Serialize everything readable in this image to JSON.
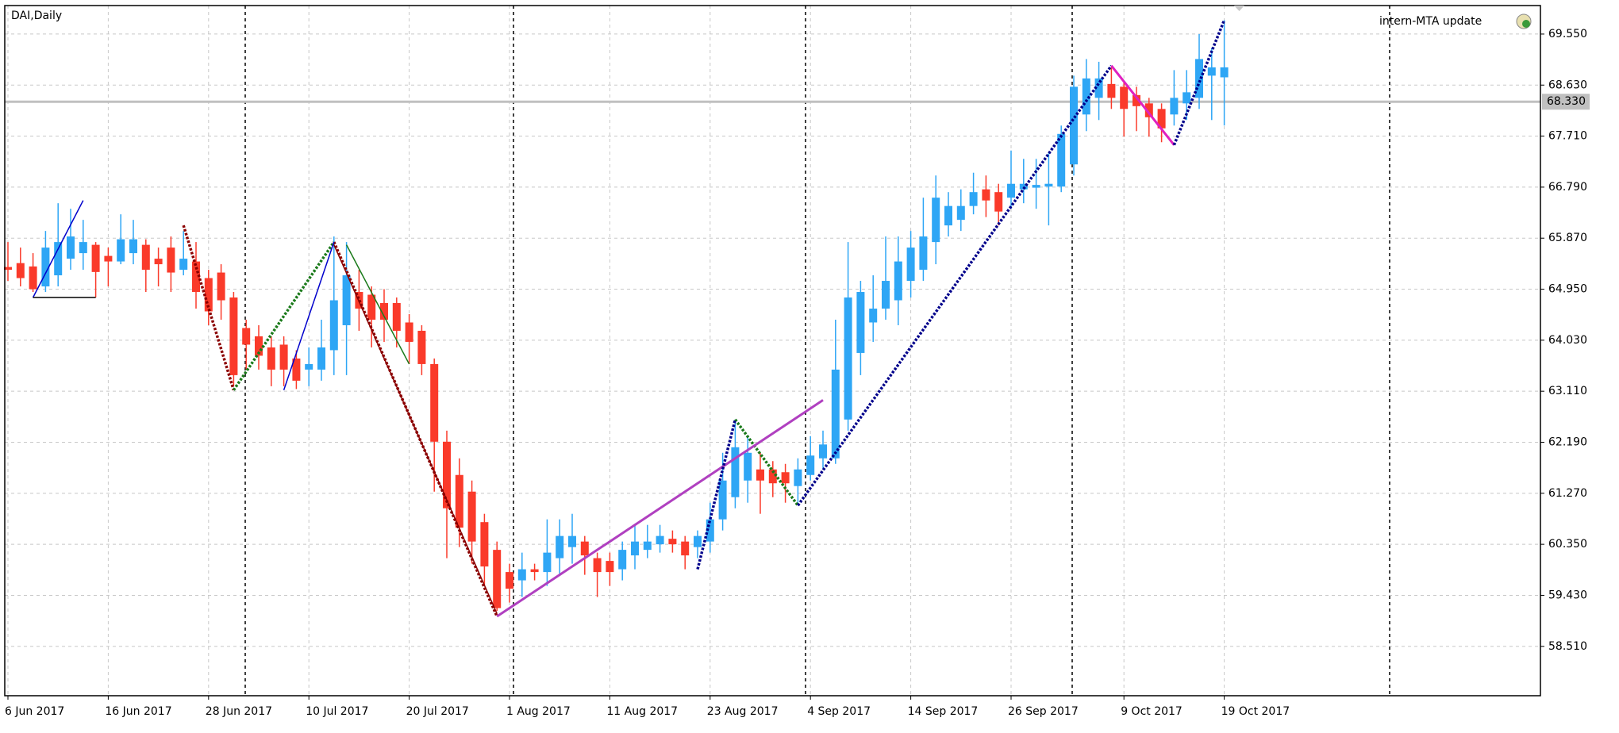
{
  "chart_data": {
    "type": "candlestick",
    "title": "DAI,Daily",
    "annotation": "intern-MTA update",
    "categories": [
      "6 Jun 2017",
      null,
      null,
      null,
      null,
      null,
      null,
      null,
      "16 Jun 2017",
      null,
      null,
      null,
      null,
      null,
      null,
      null,
      "28 Jun 2017",
      null,
      null,
      null,
      null,
      null,
      null,
      null,
      "10 Jul 2017",
      null,
      null,
      null,
      null,
      null,
      null,
      null,
      "20 Jul 2017",
      null,
      null,
      null,
      null,
      null,
      null,
      null,
      "1 Aug 2017",
      null,
      null,
      null,
      null,
      null,
      null,
      null,
      "11 Aug 2017",
      null,
      null,
      null,
      null,
      null,
      null,
      null,
      "23 Aug 2017",
      null,
      null,
      null,
      null,
      null,
      null,
      null,
      "4 Sep 2017",
      null,
      null,
      null,
      null,
      null,
      null,
      null,
      "14 Sep 2017",
      null,
      null,
      null,
      null,
      null,
      null,
      null,
      "26 Sep 2017",
      null,
      null,
      null,
      null,
      null,
      null,
      null,
      null,
      "9 Oct 2017",
      null,
      null,
      null,
      null,
      null,
      null,
      null,
      "19 Oct 2017"
    ],
    "open": [
      65.35,
      65.42,
      65.36,
      65.0,
      65.2,
      65.5,
      65.6,
      65.75,
      65.55,
      65.45,
      65.6,
      65.75,
      65.5,
      65.7,
      65.3,
      65.45,
      65.15,
      65.25,
      64.8,
      64.25,
      64.1,
      63.9,
      63.95,
      63.7,
      63.5,
      63.5,
      63.85,
      64.3,
      64.9,
      64.85,
      64.7,
      64.7,
      64.35,
      64.2,
      63.6,
      62.2,
      61.6,
      61.3,
      60.75,
      60.25,
      59.85,
      59.7,
      59.9,
      59.85,
      60.1,
      60.3,
      60.4,
      60.1,
      60.05,
      59.9,
      60.15,
      60.25,
      60.35,
      60.45,
      60.4,
      60.3,
      60.4,
      60.8,
      61.2,
      61.5,
      61.7,
      61.7,
      61.65,
      61.4,
      61.6,
      61.9,
      61.9,
      62.6,
      63.8,
      64.35,
      64.6,
      64.75,
      65.1,
      65.3,
      65.8,
      66.1,
      66.2,
      66.45,
      66.75,
      66.7,
      66.6,
      66.75,
      66.78,
      66.8,
      66.8,
      67.2,
      68.1,
      68.4,
      68.65,
      68.6,
      68.45,
      68.3,
      68.2,
      68.1,
      68.3,
      68.4,
      68.8,
      68.77
    ],
    "high": [
      65.8,
      65.7,
      65.6,
      66.0,
      66.5,
      66.4,
      66.2,
      65.8,
      65.7,
      66.3,
      66.2,
      65.85,
      65.7,
      65.9,
      66.0,
      65.8,
      65.3,
      65.4,
      64.9,
      64.4,
      64.3,
      64.1,
      64.1,
      63.85,
      63.9,
      64.4,
      65.9,
      65.8,
      65.3,
      65.0,
      64.95,
      64.8,
      64.5,
      64.3,
      63.7,
      62.4,
      61.9,
      61.5,
      60.9,
      60.4,
      60.0,
      60.2,
      60.0,
      60.8,
      60.8,
      60.9,
      60.5,
      60.2,
      60.2,
      60.4,
      60.7,
      60.7,
      60.7,
      60.6,
      60.5,
      60.6,
      61.1,
      62.0,
      62.6,
      62.3,
      62.0,
      61.85,
      61.8,
      61.9,
      62.3,
      62.4,
      64.4,
      65.8,
      65.1,
      65.2,
      65.9,
      65.9,
      66.0,
      66.6,
      67.0,
      66.7,
      66.75,
      67.05,
      67.0,
      66.85,
      67.45,
      67.3,
      67.3,
      67.4,
      67.9,
      68.8,
      69.1,
      69.05,
      68.95,
      68.7,
      68.6,
      68.4,
      68.3,
      68.9,
      68.9,
      69.55,
      69.3,
      69.8
    ],
    "low": [
      65.1,
      65.0,
      64.9,
      64.9,
      65.0,
      65.3,
      65.3,
      64.8,
      65.0,
      65.4,
      65.4,
      64.9,
      65.0,
      64.9,
      65.2,
      64.6,
      64.3,
      64.4,
      63.2,
      63.5,
      63.5,
      63.2,
      63.2,
      63.15,
      63.2,
      63.3,
      63.4,
      63.4,
      64.2,
      63.9,
      64.0,
      63.9,
      63.6,
      63.4,
      61.3,
      60.1,
      60.3,
      60.0,
      59.6,
      59.15,
      59.3,
      59.4,
      59.7,
      59.6,
      59.8,
      60.0,
      59.8,
      59.4,
      59.6,
      59.7,
      59.9,
      60.1,
      60.2,
      60.2,
      59.9,
      60.1,
      60.2,
      60.6,
      61.0,
      61.1,
      60.9,
      61.2,
      61.1,
      61.1,
      61.5,
      61.7,
      61.8,
      62.4,
      63.4,
      64.0,
      64.4,
      64.3,
      64.8,
      65.1,
      65.4,
      65.9,
      66.0,
      66.3,
      66.25,
      66.1,
      66.4,
      66.5,
      66.4,
      66.1,
      66.7,
      67.0,
      67.8,
      68.0,
      68.2,
      67.7,
      67.8,
      67.7,
      67.6,
      67.9,
      68.0,
      68.2,
      68.0,
      67.9
    ],
    "close": [
      65.3,
      65.15,
      64.95,
      65.7,
      65.8,
      65.9,
      65.8,
      65.26,
      65.45,
      65.85,
      65.85,
      65.3,
      65.4,
      65.25,
      65.5,
      64.9,
      64.55,
      64.75,
      63.4,
      63.95,
      63.75,
      63.5,
      63.5,
      63.3,
      63.6,
      63.9,
      64.75,
      65.2,
      64.6,
      64.4,
      64.4,
      64.2,
      64.0,
      63.6,
      62.2,
      61.0,
      60.65,
      60.4,
      59.95,
      59.2,
      59.55,
      59.9,
      59.85,
      60.2,
      60.5,
      60.5,
      60.15,
      59.85,
      59.85,
      60.25,
      60.4,
      60.4,
      60.5,
      60.35,
      60.15,
      60.5,
      60.8,
      61.5,
      62.1,
      62.0,
      61.5,
      61.45,
      61.45,
      61.7,
      61.95,
      62.15,
      63.5,
      64.8,
      64.9,
      64.6,
      65.1,
      65.45,
      65.7,
      65.9,
      66.6,
      66.45,
      66.45,
      66.7,
      66.55,
      66.35,
      66.85,
      66.85,
      66.83,
      66.85,
      67.75,
      68.6,
      68.75,
      68.75,
      68.4,
      68.2,
      68.25,
      68.05,
      67.85,
      68.4,
      68.5,
      69.1,
      68.95,
      68.95
    ],
    "up_color": "#2ea6f5",
    "down_color": "#fa3a2a",
    "ylim": [
      57.62,
      70.064
    ],
    "yticks": [
      {
        "value": 69.55,
        "label": "69.550"
      },
      {
        "value": 68.63,
        "label": "68.630"
      },
      {
        "value": 67.71,
        "label": "67.710"
      },
      {
        "value": 66.79,
        "label": "66.790"
      },
      {
        "value": 65.87,
        "label": "65.870"
      },
      {
        "value": 64.95,
        "label": "64.950"
      },
      {
        "value": 64.03,
        "label": "64.030"
      },
      {
        "value": 63.11,
        "label": "63.110"
      },
      {
        "value": 62.19,
        "label": "62.190"
      },
      {
        "value": 61.27,
        "label": "61.270"
      },
      {
        "value": 60.35,
        "label": "60.350"
      },
      {
        "value": 59.43,
        "label": "59.430"
      },
      {
        "value": 58.51,
        "label": "58.510"
      }
    ],
    "grid": true,
    "price_line": {
      "value": 68.33,
      "label": "68.330",
      "color": "#c0c0c0"
    },
    "overlays": [
      {
        "color": "#8b0000",
        "style": "dotted",
        "x": [
          14,
          18
        ],
        "y": [
          66.1,
          63.13
        ]
      },
      {
        "color": "#8b0000",
        "style": "dotted",
        "x": [
          26,
          39
        ],
        "y": [
          65.8,
          59.05
        ]
      },
      {
        "color": "#8b0000",
        "style": "solid",
        "x": [
          26,
          39
        ],
        "y": [
          65.75,
          59.1
        ]
      },
      {
        "color": "#1a7a1a",
        "style": "dotted",
        "x": [
          18,
          26
        ],
        "y": [
          63.13,
          65.8
        ]
      },
      {
        "color": "#1a7a1a",
        "style": "solid",
        "x": [
          27,
          32
        ],
        "y": [
          65.75,
          63.6
        ]
      },
      {
        "color": "#1a7a1a",
        "style": "dotted",
        "x": [
          58,
          63
        ],
        "y": [
          62.6,
          61.05
        ]
      },
      {
        "color": "#0000cc",
        "style": "solid",
        "x": [
          2,
          6
        ],
        "y": [
          64.8,
          66.55
        ]
      },
      {
        "color": "#0000cc",
        "style": "solid",
        "x": [
          22,
          26
        ],
        "y": [
          63.13,
          65.8
        ]
      },
      {
        "color": "#000000",
        "style": "solid",
        "x": [
          2,
          7
        ],
        "y": [
          64.8,
          64.8
        ]
      },
      {
        "color": "#b040c0",
        "style": "solid",
        "x": [
          39,
          65
        ],
        "y": [
          59.05,
          62.95
        ]
      },
      {
        "color": "#00008b",
        "style": "dotted",
        "x": [
          55,
          58
        ],
        "y": [
          59.9,
          62.6
        ]
      },
      {
        "color": "#00008b",
        "style": "dotted",
        "x": [
          63,
          88
        ],
        "y": [
          61.05,
          68.98
        ]
      },
      {
        "color": "#e020c0",
        "style": "solid",
        "x": [
          88,
          93
        ],
        "y": [
          68.98,
          67.55
        ]
      },
      {
        "color": "#00008b",
        "style": "dotted",
        "x": [
          93,
          97
        ],
        "y": [
          67.55,
          69.8
        ]
      }
    ]
  }
}
